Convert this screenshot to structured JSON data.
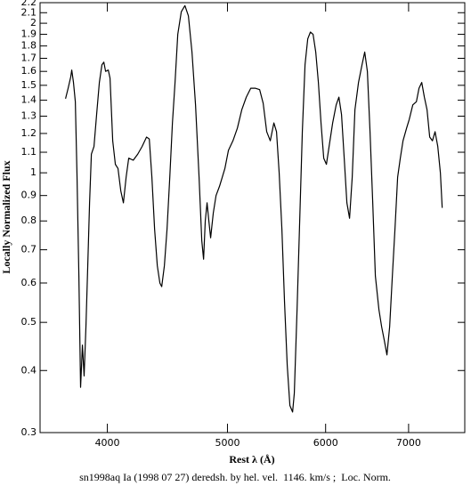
{
  "chart_data": {
    "type": "line",
    "xlabel": "Rest λ (Å)",
    "ylabel": "Locally Normalized Flux",
    "caption": "sn1998aq Ia (1998 07 27) deredsh. by hel. vel.  1146. km/s ;  Loc. Norm.",
    "xlog": true,
    "ylog": true,
    "color": "#000000",
    "xlim": [
      3530,
      7770
    ],
    "ylim": [
      0.3,
      2.2
    ],
    "xticks": [
      4000,
      5000,
      6000,
      7000
    ],
    "yticks": [
      0.3,
      0.4,
      0.5,
      0.6,
      0.7,
      0.8,
      0.9,
      1,
      1.1,
      1.2,
      1.3,
      1.4,
      1.5,
      1.6,
      1.7,
      1.8,
      1.9,
      2,
      2.1,
      2.2
    ],
    "x": [
      3701,
      3719,
      3737,
      3744,
      3756,
      3769,
      3781,
      3794,
      3806,
      3819,
      3831,
      3844,
      3857,
      3870,
      3883,
      3902,
      3921,
      3941,
      3960,
      3974,
      3987,
      4007,
      4020,
      4040,
      4060,
      4080,
      4101,
      4121,
      4142,
      4162,
      4197,
      4232,
      4267,
      4302,
      4324,
      4345,
      4367,
      4389,
      4410,
      4425,
      4447,
      4469,
      4492,
      4514,
      4536,
      4559,
      4589,
      4620,
      4650,
      4681,
      4712,
      4743,
      4767,
      4783,
      4798,
      4814,
      4830,
      4846,
      4870,
      4895,
      4927,
      4952,
      4976,
      5009,
      5051,
      5093,
      5135,
      5178,
      5221,
      5264,
      5308,
      5343,
      5378,
      5414,
      5450,
      5477,
      5504,
      5532,
      5559,
      5587,
      5615,
      5643,
      5661,
      5690,
      5718,
      5746,
      5775,
      5804,
      5833,
      5862,
      5891,
      5920,
      5949,
      5979,
      6009,
      6039,
      6079,
      6119,
      6150,
      6180,
      6211,
      6242,
      6273,
      6304,
      6336,
      6378,
      6420,
      6452,
      6484,
      6516,
      6549,
      6581,
      6625,
      6658,
      6691,
      6724,
      6758,
      6792,
      6825,
      6859,
      6893,
      6928,
      6974,
      7008,
      7055,
      7102,
      7137,
      7173,
      7208,
      7244,
      7280,
      7317,
      7353,
      7390,
      7426,
      7451
    ],
    "values": [
      1.41,
      1.48,
      1.56,
      1.61,
      1.52,
      1.39,
      0.98,
      0.62,
      0.37,
      0.45,
      0.39,
      0.49,
      0.65,
      0.87,
      1.09,
      1.13,
      1.31,
      1.52,
      1.65,
      1.67,
      1.6,
      1.61,
      1.55,
      1.16,
      1.04,
      1.02,
      0.92,
      0.87,
      0.98,
      1.07,
      1.06,
      1.09,
      1.13,
      1.18,
      1.17,
      0.98,
      0.77,
      0.65,
      0.6,
      0.59,
      0.65,
      0.77,
      0.98,
      1.26,
      1.52,
      1.9,
      2.11,
      2.17,
      2.07,
      1.75,
      1.37,
      0.98,
      0.73,
      0.67,
      0.8,
      0.87,
      0.8,
      0.74,
      0.83,
      0.9,
      0.94,
      0.98,
      1.02,
      1.11,
      1.16,
      1.23,
      1.34,
      1.42,
      1.48,
      1.48,
      1.47,
      1.38,
      1.21,
      1.16,
      1.26,
      1.21,
      1.0,
      0.77,
      0.55,
      0.41,
      0.34,
      0.33,
      0.36,
      0.53,
      0.8,
      1.21,
      1.65,
      1.86,
      1.92,
      1.9,
      1.75,
      1.52,
      1.26,
      1.07,
      1.04,
      1.13,
      1.26,
      1.37,
      1.42,
      1.31,
      1.07,
      0.87,
      0.81,
      0.98,
      1.34,
      1.52,
      1.65,
      1.75,
      1.6,
      1.21,
      0.87,
      0.62,
      0.53,
      0.49,
      0.46,
      0.43,
      0.49,
      0.62,
      0.77,
      0.98,
      1.07,
      1.16,
      1.23,
      1.28,
      1.37,
      1.39,
      1.48,
      1.52,
      1.42,
      1.34,
      1.18,
      1.16,
      1.21,
      1.13,
      1.0,
      0.85
    ]
  }
}
